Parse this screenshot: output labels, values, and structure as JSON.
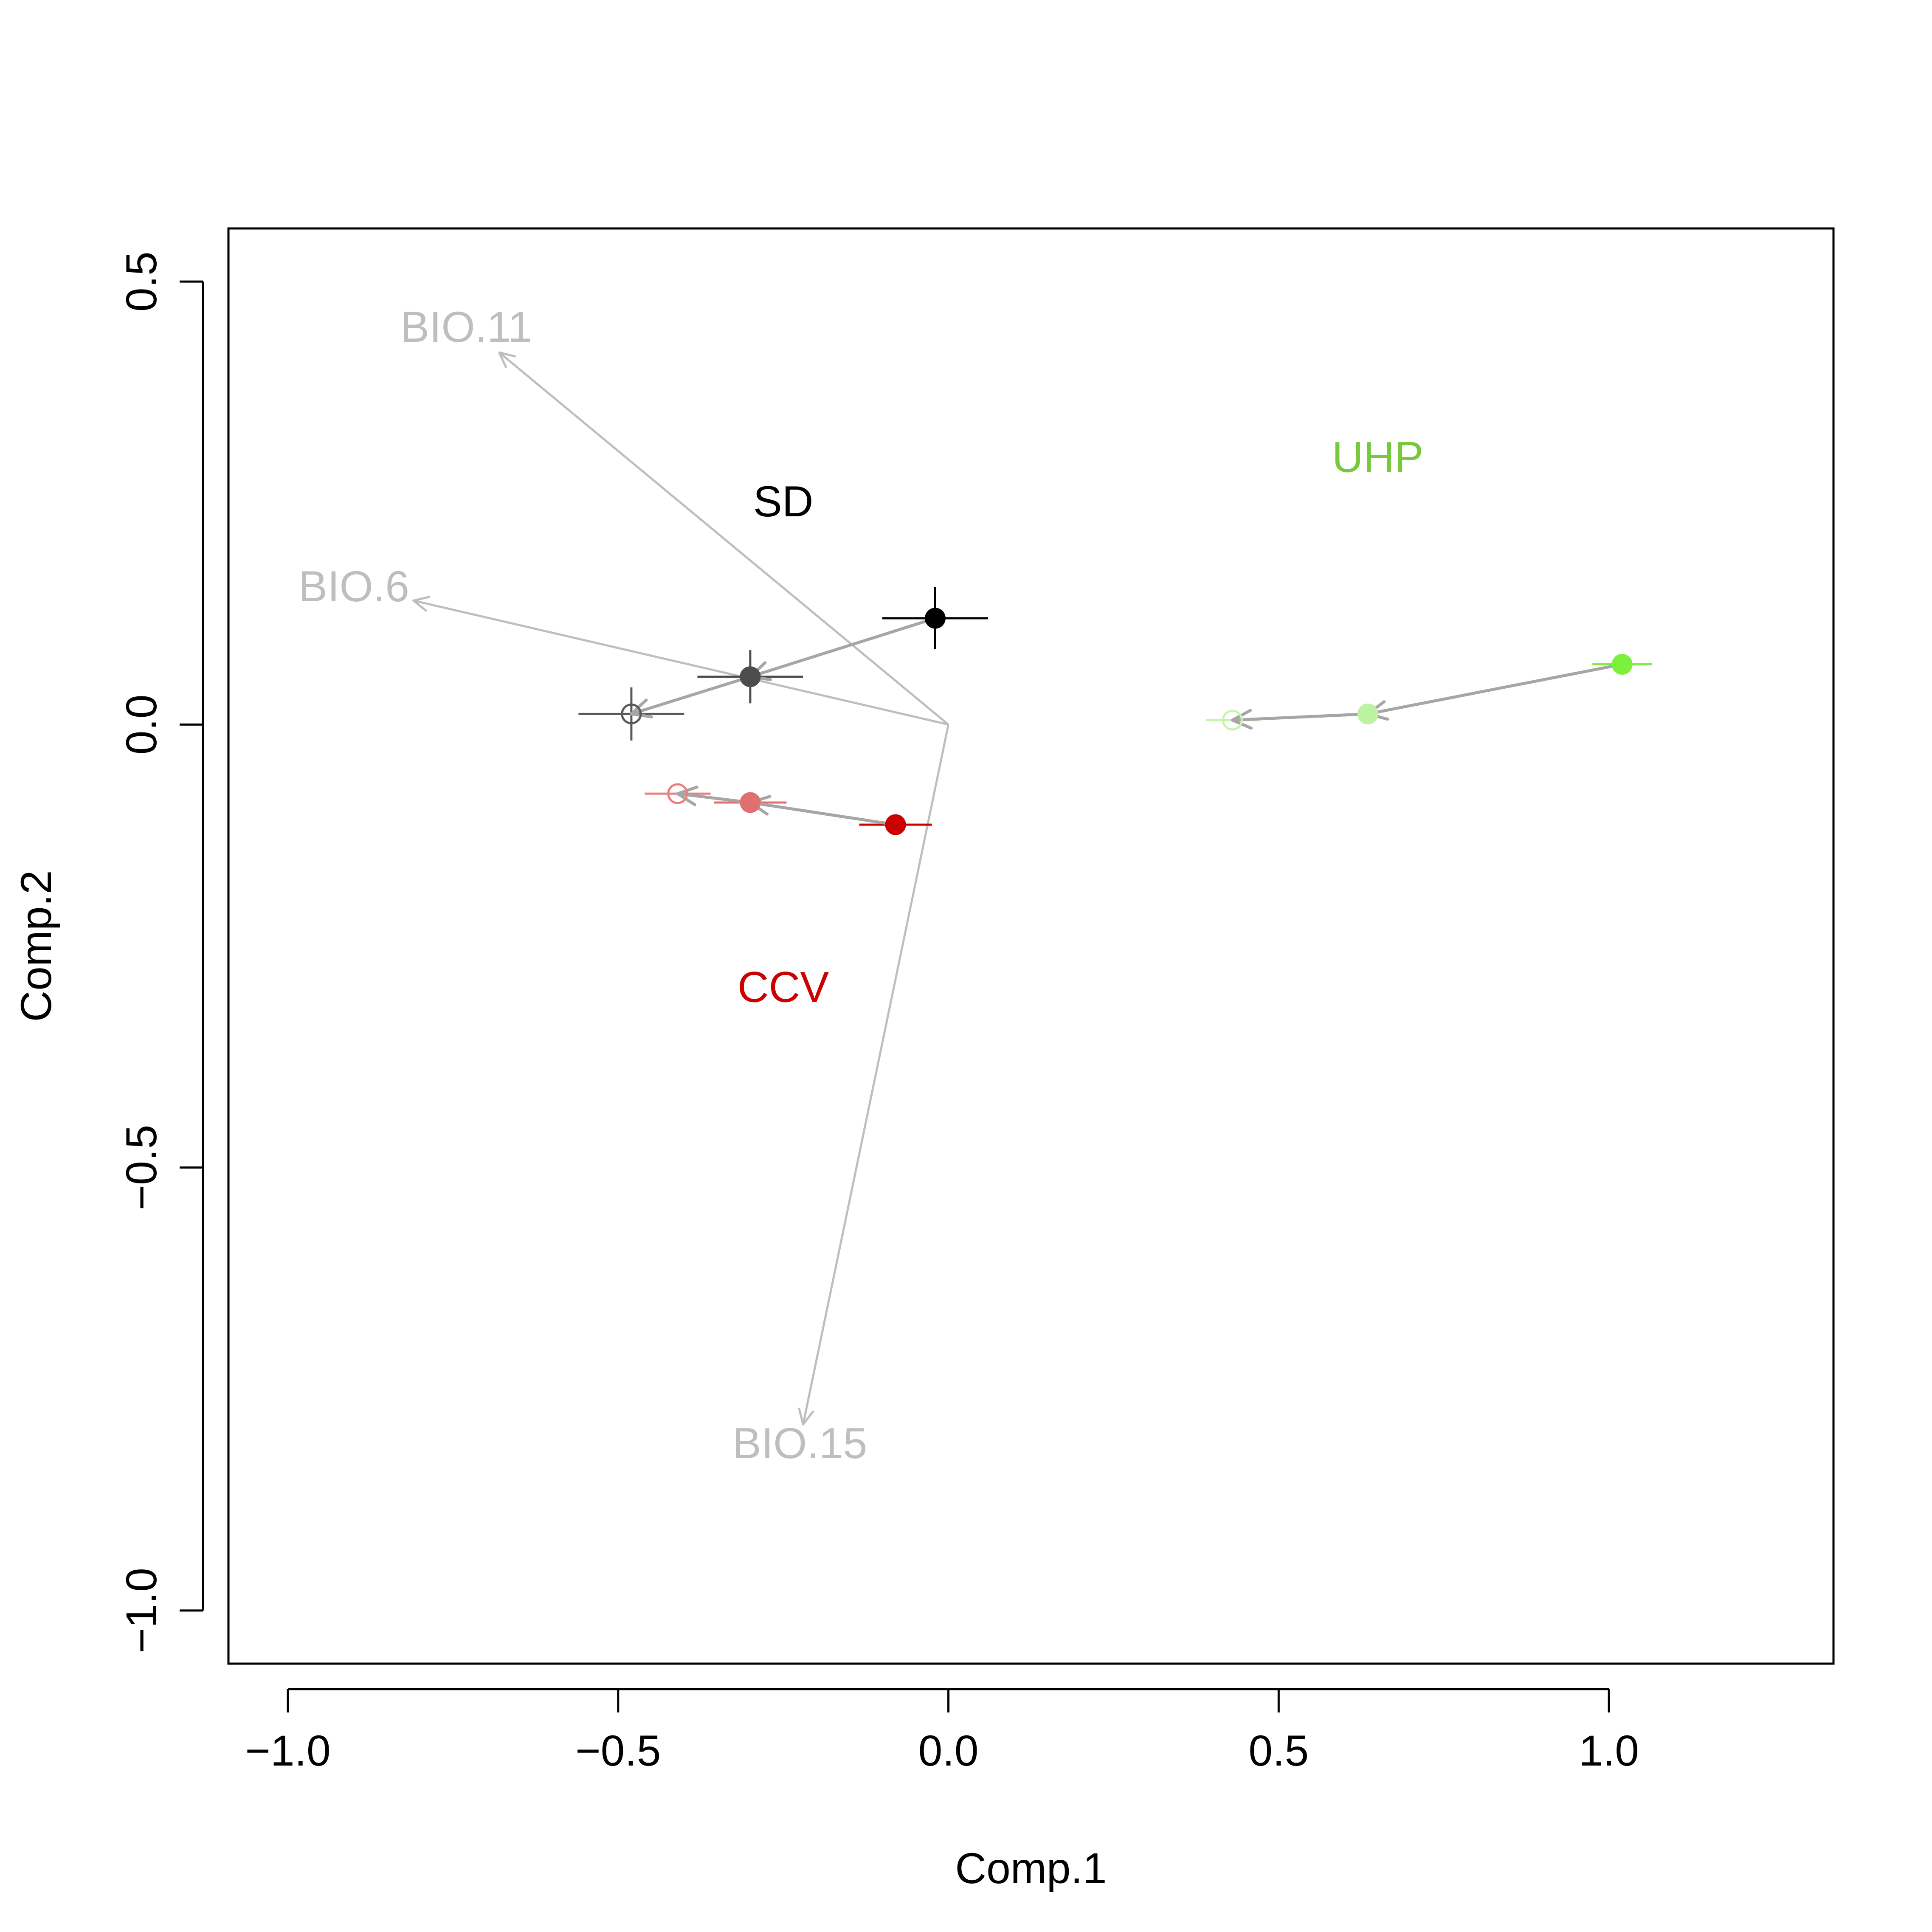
{
  "chart_data": {
    "type": "scatter",
    "xlabel": "Comp.1",
    "ylabel": "Comp.2",
    "xlim": [
      -1.09,
      1.34
    ],
    "ylim": [
      -1.06,
      0.56
    ],
    "x_ticks": [
      -1.0,
      -0.5,
      0.0,
      0.5,
      1.0
    ],
    "x_tick_labels": [
      "−1.0",
      "−0.5",
      "0.0",
      "0.5",
      "1.0"
    ],
    "y_ticks": [
      -1.0,
      -0.5,
      0.0,
      0.5
    ],
    "y_tick_labels": [
      "−1.0",
      "−0.5",
      "0.0",
      "0.5"
    ],
    "grid": false,
    "vectors": {
      "color": "#bebebe",
      "origin": [
        0.0,
        0.0
      ],
      "items": [
        {
          "label": "BIO.11",
          "x": -0.68,
          "y": 0.42,
          "label_x": -0.73,
          "label_y": 0.445
        },
        {
          "label": "BIO.6",
          "x": -0.81,
          "y": 0.14,
          "label_x": -0.9,
          "label_y": 0.152
        },
        {
          "label": "BIO.15",
          "x": -0.22,
          "y": -0.79,
          "label_x": -0.225,
          "label_y": -0.815
        }
      ]
    },
    "groups": [
      {
        "label": "SD",
        "label_color": "#000000",
        "label_x": -0.25,
        "label_y": 0.248,
        "points": [
          {
            "x": -0.02,
            "y": 0.12,
            "fill": "#000000",
            "stroke": "#000000",
            "filled": true,
            "err_x": 0.08,
            "err_y": 0.035
          },
          {
            "x": -0.3,
            "y": 0.054,
            "fill": "#4d4d4d",
            "stroke": "#4d4d4d",
            "filled": true,
            "err_x": 0.08,
            "err_y": 0.03
          },
          {
            "x": -0.48,
            "y": 0.012,
            "fill": "none",
            "stroke": "#595959",
            "filled": false,
            "err_x": 0.08,
            "err_y": 0.03
          }
        ]
      },
      {
        "label": "CCV",
        "label_color": "#cc0000",
        "label_x": -0.25,
        "label_y": -0.3,
        "points": [
          {
            "x": -0.08,
            "y": -0.113,
            "fill": "#cc0000",
            "stroke": "#cc0000",
            "filled": true,
            "err_x": 0.055,
            "err_y": 0.0
          },
          {
            "x": -0.3,
            "y": -0.088,
            "fill": "#e07070",
            "stroke": "#e07070",
            "filled": true,
            "err_x": 0.055,
            "err_y": 0.0
          },
          {
            "x": -0.41,
            "y": -0.078,
            "fill": "none",
            "stroke": "#e88080",
            "filled": false,
            "err_x": 0.05,
            "err_y": 0.0
          }
        ]
      },
      {
        "label": "UHP",
        "label_color": "#78c83c",
        "label_x": 0.65,
        "label_y": 0.298,
        "points": [
          {
            "x": 1.02,
            "y": 0.068,
            "fill": "#7cf03c",
            "stroke": "#7cf03c",
            "filled": true,
            "err_x": 0.045,
            "err_y": 0.0
          },
          {
            "x": 0.635,
            "y": 0.012,
            "fill": "#bcf2a0",
            "stroke": "#bcf2a0",
            "filled": true,
            "err_x": 0.0,
            "err_y": 0.0
          },
          {
            "x": 0.43,
            "y": 0.005,
            "fill": "none",
            "stroke": "#c8f2b0",
            "filled": false,
            "err_x": 0.04,
            "err_y": 0.0
          }
        ]
      }
    ],
    "trajectory_arrow_color": "#a6a6a6"
  }
}
